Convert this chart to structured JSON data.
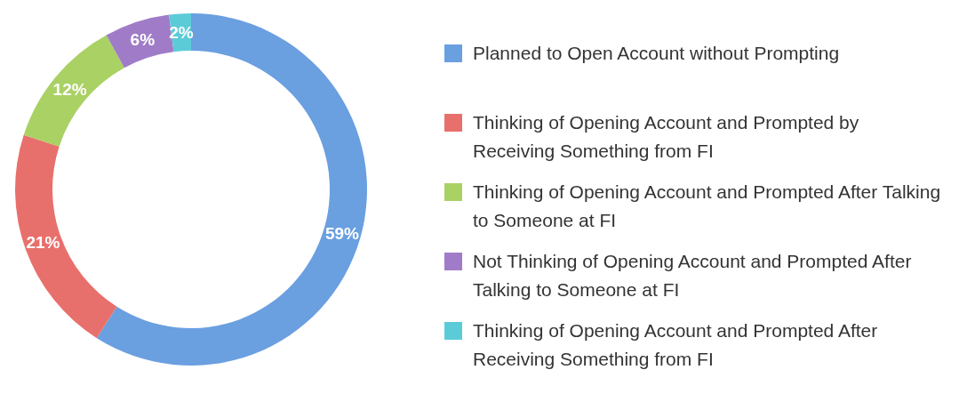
{
  "chart_data": {
    "type": "donut",
    "categories": [
      "Planned to Open Account without Prompting",
      "Thinking of Opening Account and Prompted by Receiving Something from FI",
      "Thinking of Opening Account and Prompted After Talking to Someone at FI",
      "Not Thinking of Opening Account and Prompted After Talking to Someone at FI",
      "Thinking of Opening Account and Prompted After Receiving Something from FI"
    ],
    "values": [
      59,
      21,
      12,
      6,
      2
    ],
    "value_labels": [
      "59%",
      "21%",
      "12%",
      "6%",
      "2%"
    ],
    "colors": [
      "#6a9fe0",
      "#e8706c",
      "#aad164",
      "#a07cc8",
      "#5ccbd8"
    ],
    "legend": "right"
  }
}
